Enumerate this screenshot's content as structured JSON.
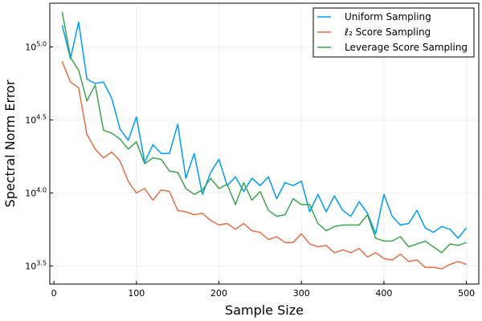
{
  "chart_data": {
    "type": "line",
    "xlabel": "Sample Size",
    "ylabel": "Spectral Norm Error",
    "xlim": [
      -5,
      515
    ],
    "ylim_log10": [
      3.375,
      5.3
    ],
    "y_scale": "log10",
    "grid": true,
    "legend_position": "top-right",
    "x_ticks": [
      0,
      100,
      200,
      300,
      400,
      500
    ],
    "x_tick_labels": [
      "0",
      "100",
      "200",
      "300",
      "400",
      "500"
    ],
    "y_ticks_log10": [
      3.5,
      4.0,
      4.5,
      5.0
    ],
    "y_tick_labels": [
      {
        "base": "10",
        "exp": "3.5"
      },
      {
        "base": "10",
        "exp": "4.0"
      },
      {
        "base": "10",
        "exp": "4.5"
      },
      {
        "base": "10",
        "exp": "5.0"
      }
    ],
    "x": [
      10,
      20,
      30,
      40,
      50,
      60,
      70,
      80,
      90,
      100,
      110,
      120,
      130,
      140,
      150,
      160,
      170,
      180,
      190,
      200,
      210,
      220,
      230,
      240,
      250,
      260,
      270,
      280,
      290,
      300,
      310,
      320,
      330,
      340,
      350,
      360,
      370,
      380,
      390,
      400,
      410,
      420,
      430,
      440,
      450,
      460,
      470,
      480,
      490,
      500
    ],
    "series": [
      {
        "name": "Uniform Sampling",
        "color": "#009AFA",
        "values_log10": [
          5.15,
          4.92,
          5.17,
          4.78,
          4.75,
          4.76,
          4.65,
          4.44,
          4.36,
          4.52,
          4.21,
          4.33,
          4.27,
          4.27,
          4.47,
          4.1,
          4.27,
          3.99,
          4.14,
          4.23,
          4.05,
          4.11,
          4.01,
          4.1,
          4.05,
          4.11,
          3.96,
          4.07,
          4.05,
          4.08,
          3.87,
          3.99,
          3.87,
          3.98,
          3.88,
          3.84,
          3.94,
          3.86,
          3.72,
          3.99,
          3.84,
          3.78,
          3.79,
          3.88,
          3.76,
          3.73,
          3.77,
          3.75,
          3.69,
          3.76
        ]
      },
      {
        "name": "ℓ₂ Score Sampling",
        "color": "#E36F47",
        "values_log10": [
          4.9,
          4.76,
          4.72,
          4.4,
          4.3,
          4.24,
          4.28,
          4.22,
          4.08,
          4.0,
          4.03,
          3.95,
          4.02,
          4.01,
          3.88,
          3.87,
          3.85,
          3.86,
          3.81,
          3.78,
          3.79,
          3.75,
          3.79,
          3.74,
          3.73,
          3.68,
          3.7,
          3.66,
          3.66,
          3.72,
          3.65,
          3.63,
          3.64,
          3.59,
          3.61,
          3.59,
          3.62,
          3.56,
          3.59,
          3.55,
          3.54,
          3.58,
          3.53,
          3.54,
          3.49,
          3.49,
          3.48,
          3.51,
          3.53,
          3.51
        ]
      },
      {
        "name": "Leverage Score Sampling",
        "color": "#3DA44D",
        "values_log10": [
          5.24,
          4.93,
          4.84,
          4.63,
          4.74,
          4.43,
          4.41,
          4.37,
          4.3,
          4.35,
          4.2,
          4.24,
          4.23,
          4.15,
          4.14,
          4.03,
          3.99,
          4.02,
          4.1,
          4.03,
          4.06,
          3.92,
          4.07,
          3.95,
          4.01,
          3.88,
          3.84,
          3.85,
          3.96,
          3.92,
          3.92,
          3.79,
          3.74,
          3.77,
          3.78,
          3.78,
          3.78,
          3.85,
          3.69,
          3.67,
          3.67,
          3.7,
          3.63,
          3.65,
          3.67,
          3.63,
          3.59,
          3.65,
          3.64,
          3.66
        ]
      }
    ]
  }
}
